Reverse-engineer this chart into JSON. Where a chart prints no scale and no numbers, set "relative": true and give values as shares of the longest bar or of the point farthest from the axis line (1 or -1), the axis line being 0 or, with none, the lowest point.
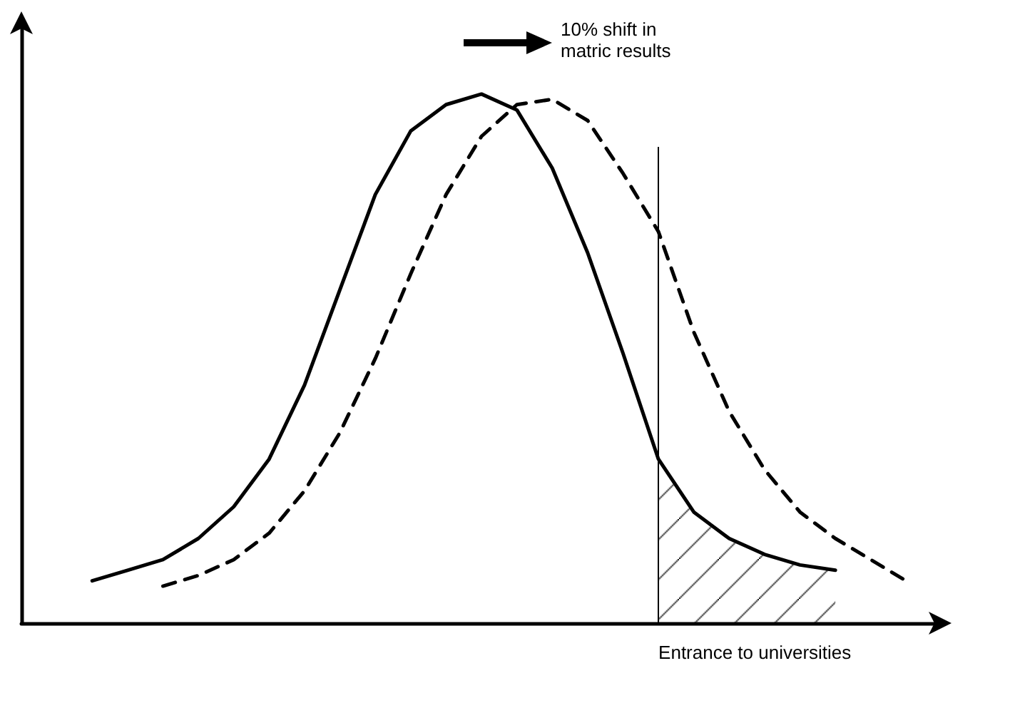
{
  "chart_data": {
    "type": "line",
    "relative": true,
    "marker": "none",
    "categories": [
      null,
      null,
      null,
      null,
      null,
      null,
      null,
      null,
      null,
      null,
      null,
      null,
      null,
      null,
      null,
      null,
      null,
      null,
      null,
      null,
      null,
      null,
      null,
      null,
      null,
      null,
      null
    ],
    "annotations": [
      "10% shift in\nmatric results"
    ],
    "ref_lines": [
      {
        "axis": "x",
        "label": "Entrance to universities",
        "color": "#000000"
      }
    ],
    "series": [
      {
        "type": "line",
        "color": "#000000",
        "line_style": "solid",
        "values": [
          null,
          null,
          0.08,
          0.1,
          0.12,
          0.16,
          0.22,
          0.31,
          0.45,
          0.63,
          0.81,
          0.93,
          0.98,
          1.0,
          0.97,
          0.86,
          0.7,
          0.51,
          0.31,
          0.21,
          0.16,
          0.13,
          0.11,
          0.1,
          null,
          null,
          null
        ]
      },
      {
        "type": "line",
        "color": "#000000",
        "line_style": "dashed",
        "values": [
          null,
          null,
          null,
          null,
          0.07,
          0.09,
          0.12,
          0.17,
          0.25,
          0.36,
          0.5,
          0.66,
          0.81,
          0.92,
          0.98,
          0.99,
          0.95,
          0.85,
          0.74,
          0.55,
          0.4,
          0.29,
          0.21,
          0.16,
          0.12,
          0.08,
          null
        ]
      },
      {
        "type": "area",
        "color": "#000000",
        "line_style": "solid",
        "values": [
          null,
          null,
          null,
          null,
          null,
          null,
          null,
          null,
          null,
          null,
          null,
          null,
          null,
          null,
          null,
          null,
          null,
          null,
          0.31,
          0.21,
          0.16,
          0.13,
          0.11,
          0.1,
          null,
          null,
          null
        ]
      }
    ]
  }
}
